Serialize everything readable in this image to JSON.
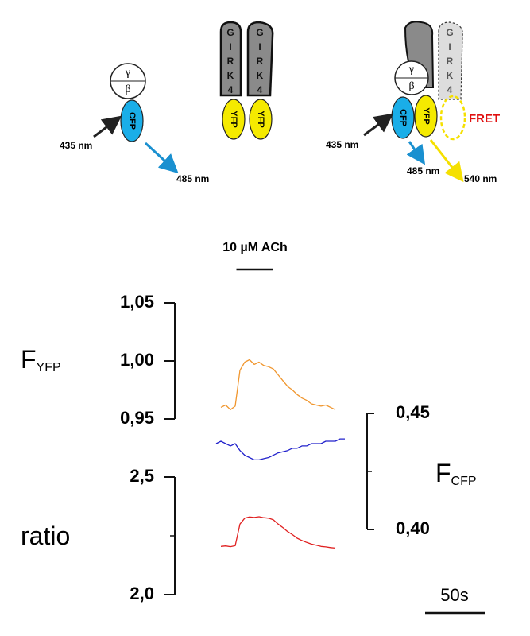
{
  "diagram": {
    "gamma": "γ",
    "beta": "β",
    "cfp": "CFP",
    "yfp": "YFP",
    "girk_letters": [
      "G",
      "I",
      "R",
      "K",
      "4"
    ],
    "wavelengths": [
      "435 nm",
      "485 nm",
      "540 nm"
    ],
    "fret": "FRET"
  },
  "stimulus": {
    "label": "10 µM ACh",
    "interval": [
      17,
      48
    ]
  },
  "scale_bar": {
    "value": 50,
    "label": "50s"
  },
  "chart_data": [
    {
      "type": "line",
      "ylabel": "F",
      "ylabel_sub": "YFP",
      "color": "#f0962e",
      "x": [
        0,
        4,
        8,
        12,
        16,
        20,
        24,
        28,
        32,
        36,
        40,
        44,
        48,
        52,
        56,
        60,
        64,
        68,
        72,
        76,
        80,
        84,
        88,
        92,
        96,
        100,
        104,
        108
      ],
      "values": [
        null,
        0.96,
        0.962,
        0.958,
        0.961,
        0.992,
        0.999,
        1.001,
        0.997,
        0.999,
        0.996,
        0.995,
        0.993,
        0.988,
        0.983,
        0.978,
        0.975,
        0.971,
        0.968,
        0.966,
        0.963,
        0.962,
        0.961,
        0.962,
        0.96,
        0.958,
        null,
        null
      ],
      "xlim": [
        0,
        110
      ],
      "ylim": [
        0.95,
        1.05
      ],
      "yticks": [
        {
          "value": 0.95,
          "label": "0,95"
        },
        {
          "value": 1.0,
          "label": "1,00"
        },
        {
          "value": 1.05,
          "label": "1,05"
        }
      ]
    },
    {
      "type": "line",
      "ylabel": "F",
      "ylabel_sub": "CFP",
      "color": "#2222cc",
      "x": [
        0,
        4,
        8,
        12,
        16,
        20,
        24,
        28,
        32,
        36,
        40,
        44,
        48,
        52,
        56,
        60,
        64,
        68,
        72,
        76,
        80,
        84,
        88,
        92,
        96,
        100,
        104,
        108
      ],
      "values": [
        0.437,
        0.438,
        0.437,
        0.436,
        0.437,
        0.434,
        0.432,
        0.431,
        0.43,
        0.43,
        0.4305,
        0.431,
        0.432,
        0.433,
        0.4335,
        0.434,
        0.435,
        0.435,
        0.436,
        0.436,
        0.437,
        0.437,
        0.437,
        0.438,
        0.438,
        0.438,
        0.439,
        0.439
      ],
      "xlim": [
        0,
        110
      ],
      "ylim": [
        0.4,
        0.45
      ],
      "yticks": [
        {
          "value": 0.4,
          "label": "0,40"
        },
        {
          "value": 0.45,
          "label": "0,45"
        }
      ],
      "minor_yticks": [
        0.425
      ]
    },
    {
      "type": "line",
      "ylabel": "ratio",
      "color": "#e02020",
      "x": [
        0,
        4,
        8,
        12,
        16,
        20,
        24,
        28,
        32,
        36,
        40,
        44,
        48,
        52,
        56,
        60,
        64,
        68,
        72,
        76,
        80,
        84,
        88,
        92,
        96,
        100,
        104,
        108
      ],
      "values": [
        null,
        2.205,
        2.207,
        2.204,
        2.208,
        2.3,
        2.325,
        2.33,
        2.328,
        2.331,
        2.327,
        2.325,
        2.318,
        2.3,
        2.285,
        2.268,
        2.255,
        2.24,
        2.23,
        2.222,
        2.215,
        2.21,
        2.205,
        2.203,
        2.2,
        2.198,
        null,
        null
      ],
      "xlim": [
        0,
        110
      ],
      "ylim": [
        2.0,
        2.5
      ],
      "yticks": [
        {
          "value": 2.0,
          "label": "2,0"
        },
        {
          "value": 2.5,
          "label": "2,5"
        }
      ],
      "minor_yticks": [
        2.25
      ]
    }
  ]
}
